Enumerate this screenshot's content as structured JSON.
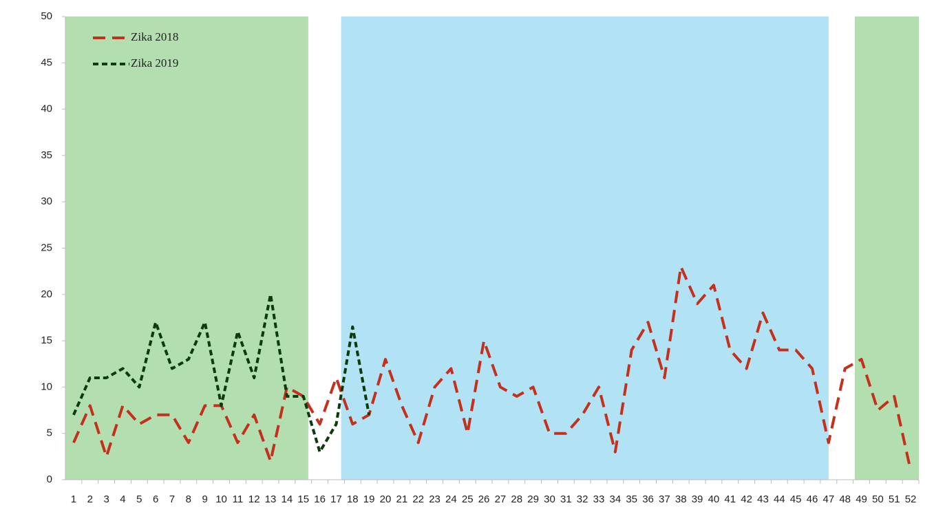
{
  "chart_data": {
    "type": "line",
    "categories": [
      "1",
      "2",
      "3",
      "4",
      "5",
      "6",
      "7",
      "8",
      "9",
      "10",
      "11",
      "12",
      "13",
      "14",
      "15",
      "16",
      "17",
      "18",
      "19",
      "20",
      "21",
      "22",
      "23",
      "24",
      "25",
      "26",
      "27",
      "28",
      "29",
      "30",
      "31",
      "32",
      "33",
      "34",
      "35",
      "36",
      "37",
      "38",
      "39",
      "40",
      "41",
      "42",
      "43",
      "44",
      "45",
      "46",
      "47",
      "48",
      "49",
      "50",
      "51",
      "52"
    ],
    "series": [
      {
        "name": "Zika 2018",
        "color": "#c4301c",
        "dash": "18 10",
        "values": [
          4,
          8,
          2.5,
          8,
          6,
          7,
          7,
          4,
          8,
          8,
          4,
          7,
          2,
          10,
          9,
          6,
          11,
          6,
          7,
          13,
          8,
          4,
          10,
          12,
          5,
          15,
          10,
          9,
          10,
          5,
          5,
          7,
          10,
          3,
          14,
          17,
          11,
          23,
          19,
          21,
          14,
          12,
          18,
          14,
          14,
          12,
          4,
          12,
          13,
          7.5,
          9,
          1
        ]
      },
      {
        "name": "Zika 2019",
        "color": "#0b3a0b",
        "dash": "8 5",
        "values": [
          7,
          11,
          11,
          12,
          10,
          17,
          12,
          13,
          17,
          8,
          16,
          11,
          20,
          9,
          9,
          3,
          6,
          16.5,
          7,
          null,
          null,
          null,
          null,
          null,
          null,
          null,
          null,
          null,
          null,
          null,
          null,
          null,
          null,
          null,
          null,
          null,
          null,
          null,
          null,
          null,
          null,
          null,
          null,
          null,
          null,
          null,
          null,
          null,
          null,
          null,
          null,
          null
        ]
      }
    ],
    "shaded_regions": [
      {
        "from": 0.5,
        "to": 15.3,
        "color": "#b3dfb0"
      },
      {
        "from": 17.3,
        "to": 47.0,
        "color": "#b1e3f5"
      },
      {
        "from": 48.6,
        "to": 52.5,
        "color": "#b3dfb0"
      }
    ],
    "ylim": [
      0,
      50
    ],
    "yticks": [
      0,
      5,
      10,
      15,
      20,
      25,
      30,
      35,
      40,
      45,
      50
    ],
    "grid": false,
    "legend": "upper left"
  }
}
